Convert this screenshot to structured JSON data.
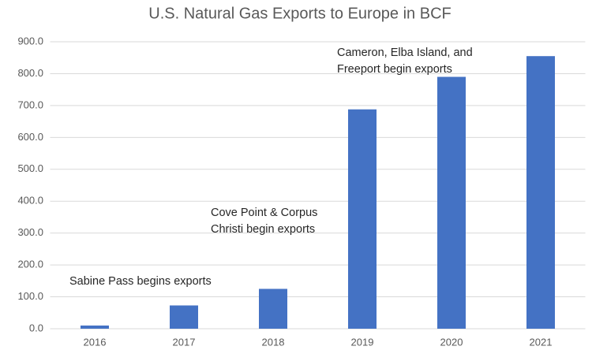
{
  "chart_data": {
    "type": "bar",
    "title": "U.S. Natural Gas Exports to Europe in BCF",
    "categories": [
      "2016",
      "2017",
      "2018",
      "2019",
      "2020",
      "2021"
    ],
    "values": [
      10,
      73,
      125,
      688,
      790,
      855
    ],
    "color": "#4472c4",
    "ylim": [
      0,
      900
    ],
    "yticks": [
      {
        "value": 0,
        "label": "0.0"
      },
      {
        "value": 100,
        "label": "100.0"
      },
      {
        "value": 200,
        "label": "200.0"
      },
      {
        "value": 300,
        "label": "300.0"
      },
      {
        "value": 400,
        "label": "400.0"
      },
      {
        "value": 500,
        "label": "500.0"
      },
      {
        "value": 600,
        "label": "600.0"
      },
      {
        "value": 700,
        "label": "700.0"
      },
      {
        "value": 800,
        "label": "800.0"
      },
      {
        "value": 900,
        "label": "900.0"
      }
    ],
    "grid": true,
    "annotations": [
      {
        "lines": [
          "Sabine Pass begins exports"
        ]
      },
      {
        "lines": [
          "Cove Point & Corpus",
          "Christi begin exports"
        ]
      },
      {
        "lines": [
          "Cameron, Elba Island, and",
          "Freeport begin exports"
        ]
      }
    ]
  }
}
